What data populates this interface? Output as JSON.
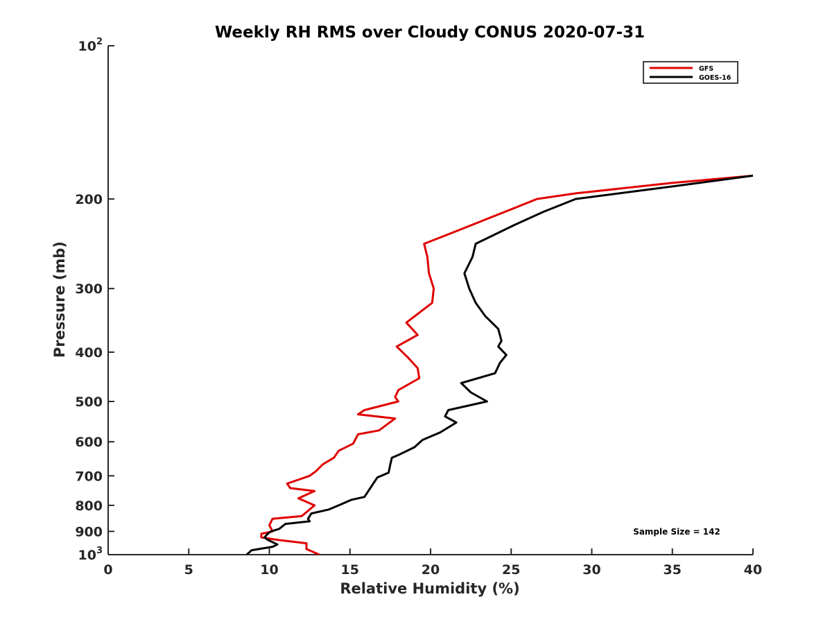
{
  "chart_data": {
    "type": "line",
    "title": "Weekly RH RMS over Cloudy CONUS 2020-07-31",
    "xlabel": "Relative Humidity (%)",
    "ylabel": "Pressure (mb)",
    "xlim": [
      0,
      40
    ],
    "ylim": [
      100,
      1000
    ],
    "y_scale": "log",
    "y_reversed": true,
    "grid": false,
    "x_ticks": [
      0,
      5,
      10,
      15,
      20,
      25,
      30,
      35,
      40
    ],
    "y_ticks": [
      {
        "value": 100,
        "base": "10",
        "exp": "2"
      },
      {
        "value": 200,
        "label": "200"
      },
      {
        "value": 300,
        "label": "300"
      },
      {
        "value": 400,
        "label": "400"
      },
      {
        "value": 500,
        "label": "500"
      },
      {
        "value": 600,
        "label": "600"
      },
      {
        "value": 700,
        "label": "700"
      },
      {
        "value": 800,
        "label": "800"
      },
      {
        "value": 900,
        "label": "900"
      },
      {
        "value": 1000,
        "base": "10",
        "exp": "3"
      }
    ],
    "legend_position": "top-right",
    "annotation": "Sample Size = 142",
    "series": [
      {
        "name": "GFS",
        "color": "#e00000",
        "points": [
          [
            13.1,
            1000
          ],
          [
            12.3,
            975
          ],
          [
            12.3,
            950
          ],
          [
            10.5,
            935
          ],
          [
            9.5,
            925
          ],
          [
            9.5,
            910
          ],
          [
            10.2,
            900
          ],
          [
            10.0,
            875
          ],
          [
            10.2,
            850
          ],
          [
            12.0,
            840
          ],
          [
            12.3,
            825
          ],
          [
            12.8,
            800
          ],
          [
            11.8,
            775
          ],
          [
            12.8,
            750
          ],
          [
            11.3,
            740
          ],
          [
            11.1,
            725
          ],
          [
            12.5,
            700
          ],
          [
            12.9,
            685
          ],
          [
            13.3,
            665
          ],
          [
            14.0,
            645
          ],
          [
            14.3,
            625
          ],
          [
            15.2,
            605
          ],
          [
            15.5,
            580
          ],
          [
            16.8,
            570
          ],
          [
            17.8,
            540
          ],
          [
            15.5,
            530
          ],
          [
            15.9,
            520
          ],
          [
            18.0,
            500
          ],
          [
            17.8,
            490
          ],
          [
            18.0,
            475
          ],
          [
            19.3,
            450
          ],
          [
            19.2,
            430
          ],
          [
            18.6,
            410
          ],
          [
            17.9,
            390
          ],
          [
            19.2,
            370
          ],
          [
            18.5,
            350
          ],
          [
            20.1,
            320
          ],
          [
            20.2,
            300
          ],
          [
            19.9,
            280
          ],
          [
            19.8,
            260
          ],
          [
            19.6,
            245
          ],
          [
            21.8,
            230
          ],
          [
            26.6,
            200
          ],
          [
            29.0,
            195
          ],
          [
            35.0,
            186
          ],
          [
            40.0,
            180
          ]
        ]
      },
      {
        "name": "GOES-16",
        "color": "#000000",
        "points": [
          [
            8.6,
            1000
          ],
          [
            8.9,
            980
          ],
          [
            10.2,
            965
          ],
          [
            10.5,
            955
          ],
          [
            9.9,
            935
          ],
          [
            9.7,
            925
          ],
          [
            9.9,
            910
          ],
          [
            10.1,
            900
          ],
          [
            10.6,
            890
          ],
          [
            11.0,
            870
          ],
          [
            12.5,
            860
          ],
          [
            12.4,
            850
          ],
          [
            12.6,
            830
          ],
          [
            13.7,
            815
          ],
          [
            14.5,
            795
          ],
          [
            15.1,
            780
          ],
          [
            15.9,
            770
          ],
          [
            16.2,
            745
          ],
          [
            16.7,
            705
          ],
          [
            17.4,
            690
          ],
          [
            17.5,
            665
          ],
          [
            17.6,
            645
          ],
          [
            18.1,
            635
          ],
          [
            19.0,
            615
          ],
          [
            19.5,
            595
          ],
          [
            20.6,
            575
          ],
          [
            21.6,
            550
          ],
          [
            20.9,
            535
          ],
          [
            21.1,
            520
          ],
          [
            23.5,
            500
          ],
          [
            22.5,
            480
          ],
          [
            21.9,
            460
          ],
          [
            24.0,
            440
          ],
          [
            24.3,
            420
          ],
          [
            24.7,
            405
          ],
          [
            24.2,
            390
          ],
          [
            24.4,
            380
          ],
          [
            24.2,
            360
          ],
          [
            23.4,
            340
          ],
          [
            22.8,
            320
          ],
          [
            22.4,
            300
          ],
          [
            22.1,
            280
          ],
          [
            22.6,
            260
          ],
          [
            22.8,
            245
          ],
          [
            25.2,
            225
          ],
          [
            27.0,
            212
          ],
          [
            29.0,
            200
          ],
          [
            35.0,
            189
          ],
          [
            40.0,
            180
          ]
        ]
      }
    ]
  }
}
